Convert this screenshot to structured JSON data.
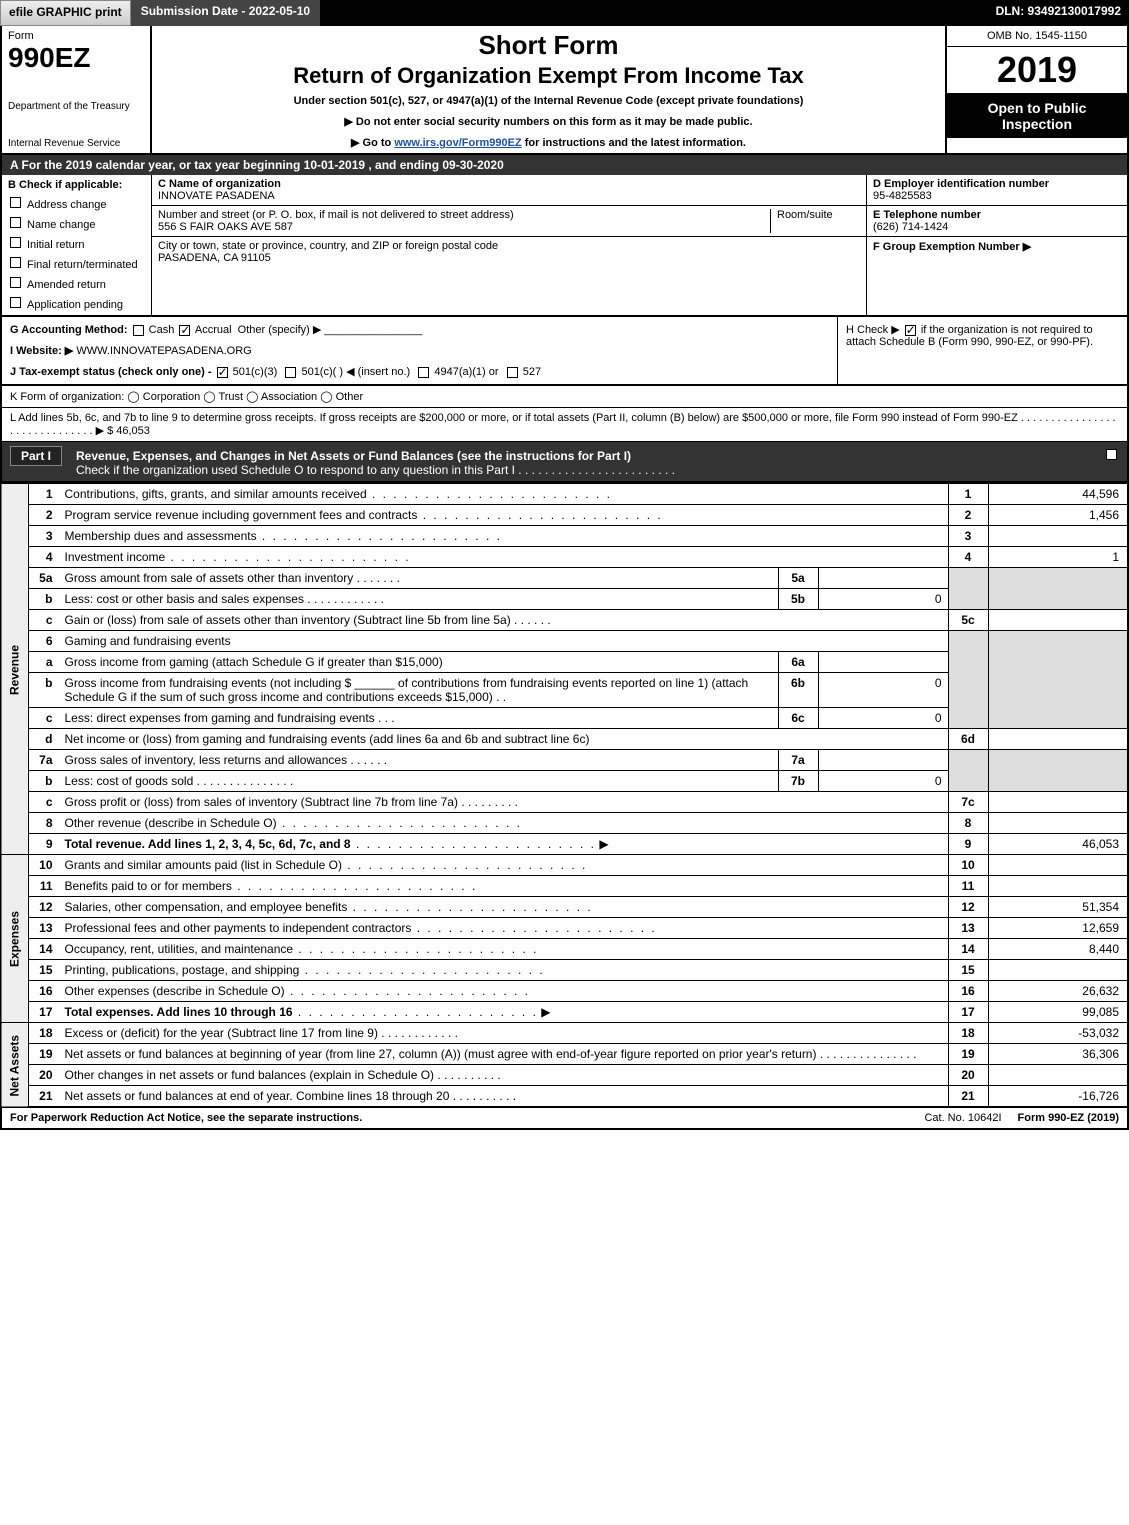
{
  "meta": {
    "efile_label": "efile GRAPHIC print",
    "submission_date_label": "Submission Date - 2022-05-10",
    "dln": "DLN: 93492130017992",
    "form_word": "Form",
    "form_number": "990EZ",
    "dept": "Department of the Treasury",
    "irs": "Internal Revenue Service",
    "omb": "OMB No. 1545-1150",
    "tax_year": "2019",
    "open_to_public": "Open to Public Inspection",
    "title_short": "Short Form",
    "title_main": "Return of Organization Exempt From Income Tax",
    "subtitle": "Under section 501(c), 527, or 4947(a)(1) of the Internal Revenue Code (except private foundations)",
    "instr_no_ssn": "▶ Do not enter social security numbers on this form as it may be made public.",
    "instr_goto_pre": "▶ Go to ",
    "instr_goto_url": "www.irs.gov/Form990EZ",
    "instr_goto_post": " for instructions and the latest information."
  },
  "row_a": "A For the 2019 calendar year, or tax year beginning 10-01-2019 , and ending 09-30-2020",
  "section_b": {
    "header": "B Check if applicable:",
    "address_change": "Address change",
    "name_change": "Name change",
    "initial_return": "Initial return",
    "final_return": "Final return/terminated",
    "amended_return": "Amended return",
    "application_pending": "Application pending"
  },
  "section_c": {
    "name_label": "C Name of organization",
    "name_value": "INNOVATE PASADENA",
    "street_label": "Number and street (or P. O. box, if mail is not delivered to street address)",
    "room_label": "Room/suite",
    "street_value": "556 S FAIR OAKS AVE 587",
    "city_label": "City or town, state or province, country, and ZIP or foreign postal code",
    "city_value": "PASADENA, CA  91105"
  },
  "section_d": {
    "ein_label": "D Employer identification number",
    "ein_value": "95-4825583",
    "phone_label": "E Telephone number",
    "phone_value": "(626) 714-1424",
    "group_label": "F Group Exemption Number  ▶"
  },
  "section_g": {
    "label": "G Accounting Method:",
    "cash": "Cash",
    "accrual": "Accrual",
    "other": "Other (specify) ▶"
  },
  "section_h": {
    "text_pre": "H Check ▶ ",
    "text_post": " if the organization is not required to attach Schedule B (Form 990, 990-EZ, or 990-PF)."
  },
  "section_i": {
    "label": "I Website: ▶",
    "value": "WWW.INNOVATEPASADENA.ORG"
  },
  "section_j": {
    "label": "J Tax-exempt status (check only one) - ",
    "opt1": "501(c)(3)",
    "opt2": "501(c)(  ) ◀ (insert no.)",
    "opt3": "4947(a)(1) or",
    "opt4": "527"
  },
  "line_k": "K Form of organization:   ◯ Corporation   ◯ Trust   ◯ Association   ◯ Other",
  "line_l": {
    "text": "L Add lines 5b, 6c, and 7b to line 9 to determine gross receipts. If gross receipts are $200,000 or more, or if total assets (Part II, column (B) below) are $500,000 or more, file Form 990 instead of Form 990-EZ . . . . . . . . . . . . . . . . . . . . . . . . . . . . . .  ▶ $ ",
    "value": "46,053"
  },
  "part1": {
    "tab": "Part I",
    "title": "Revenue, Expenses, and Changes in Net Assets or Fund Balances (see the instructions for Part I)",
    "check_note": "Check if the organization used Schedule O to respond to any question in this Part I . . . . . . . . . . . . . . . . . . . . . . . .",
    "side_revenue": "Revenue",
    "side_expenses": "Expenses",
    "side_netassets": "Net Assets"
  },
  "lines": {
    "l1": {
      "no": "1",
      "desc": "Contributions, gifts, grants, and similar amounts received",
      "num": "1",
      "val": "44,596"
    },
    "l2": {
      "no": "2",
      "desc": "Program service revenue including government fees and contracts",
      "num": "2",
      "val": "1,456"
    },
    "l3": {
      "no": "3",
      "desc": "Membership dues and assessments",
      "num": "3",
      "val": ""
    },
    "l4": {
      "no": "4",
      "desc": "Investment income",
      "num": "4",
      "val": "1"
    },
    "l5a": {
      "no": "5a",
      "desc": "Gross amount from sale of assets other than inventory",
      "mini_no": "5a",
      "mini_val": ""
    },
    "l5b": {
      "no": "b",
      "desc": "Less: cost or other basis and sales expenses",
      "mini_no": "5b",
      "mini_val": "0"
    },
    "l5c": {
      "no": "c",
      "desc": "Gain or (loss) from sale of assets other than inventory (Subtract line 5b from line 5a)",
      "num": "5c",
      "val": ""
    },
    "l6": {
      "no": "6",
      "desc": "Gaming and fundraising events"
    },
    "l6a": {
      "no": "a",
      "desc": "Gross income from gaming (attach Schedule G if greater than $15,000)",
      "mini_no": "6a",
      "mini_val": ""
    },
    "l6b": {
      "no": "b",
      "desc1": "Gross income from fundraising events (not including $",
      "desc2": "of contributions from fundraising events reported on line 1) (attach Schedule G if the sum of such gross income and contributions exceeds $15,000)",
      "mini_no": "6b",
      "mini_val": "0"
    },
    "l6c": {
      "no": "c",
      "desc": "Less: direct expenses from gaming and fundraising events",
      "mini_no": "6c",
      "mini_val": "0"
    },
    "l6d": {
      "no": "d",
      "desc": "Net income or (loss) from gaming and fundraising events (add lines 6a and 6b and subtract line 6c)",
      "num": "6d",
      "val": ""
    },
    "l7a": {
      "no": "7a",
      "desc": "Gross sales of inventory, less returns and allowances",
      "mini_no": "7a",
      "mini_val": ""
    },
    "l7b": {
      "no": "b",
      "desc": "Less: cost of goods sold",
      "mini_no": "7b",
      "mini_val": "0"
    },
    "l7c": {
      "no": "c",
      "desc": "Gross profit or (loss) from sales of inventory (Subtract line 7b from line 7a)",
      "num": "7c",
      "val": ""
    },
    "l8": {
      "no": "8",
      "desc": "Other revenue (describe in Schedule O)",
      "num": "8",
      "val": ""
    },
    "l9": {
      "no": "9",
      "desc": "Total revenue. Add lines 1, 2, 3, 4, 5c, 6d, 7c, and 8",
      "num": "9",
      "val": "46,053"
    },
    "l10": {
      "no": "10",
      "desc": "Grants and similar amounts paid (list in Schedule O)",
      "num": "10",
      "val": ""
    },
    "l11": {
      "no": "11",
      "desc": "Benefits paid to or for members",
      "num": "11",
      "val": ""
    },
    "l12": {
      "no": "12",
      "desc": "Salaries, other compensation, and employee benefits",
      "num": "12",
      "val": "51,354"
    },
    "l13": {
      "no": "13",
      "desc": "Professional fees and other payments to independent contractors",
      "num": "13",
      "val": "12,659"
    },
    "l14": {
      "no": "14",
      "desc": "Occupancy, rent, utilities, and maintenance",
      "num": "14",
      "val": "8,440"
    },
    "l15": {
      "no": "15",
      "desc": "Printing, publications, postage, and shipping",
      "num": "15",
      "val": ""
    },
    "l16": {
      "no": "16",
      "desc": "Other expenses (describe in Schedule O)",
      "num": "16",
      "val": "26,632"
    },
    "l17": {
      "no": "17",
      "desc": "Total expenses. Add lines 10 through 16",
      "num": "17",
      "val": "99,085"
    },
    "l18": {
      "no": "18",
      "desc": "Excess or (deficit) for the year (Subtract line 17 from line 9)",
      "num": "18",
      "val": "-53,032"
    },
    "l19": {
      "no": "19",
      "desc": "Net assets or fund balances at beginning of year (from line 27, column (A)) (must agree with end-of-year figure reported on prior year's return)",
      "num": "19",
      "val": "36,306"
    },
    "l20": {
      "no": "20",
      "desc": "Other changes in net assets or fund balances (explain in Schedule O)",
      "num": "20",
      "val": ""
    },
    "l21": {
      "no": "21",
      "desc": "Net assets or fund balances at end of year. Combine lines 18 through 20",
      "num": "21",
      "val": "-16,726"
    }
  },
  "footer": {
    "left": "For Paperwork Reduction Act Notice, see the separate instructions.",
    "mid": "Cat. No. 10642I",
    "right": "Form 990-EZ (2019)"
  },
  "colors": {
    "header_bg": "#333333",
    "black": "#000000",
    "shade": "#dddddd",
    "link": "#2050a0"
  }
}
